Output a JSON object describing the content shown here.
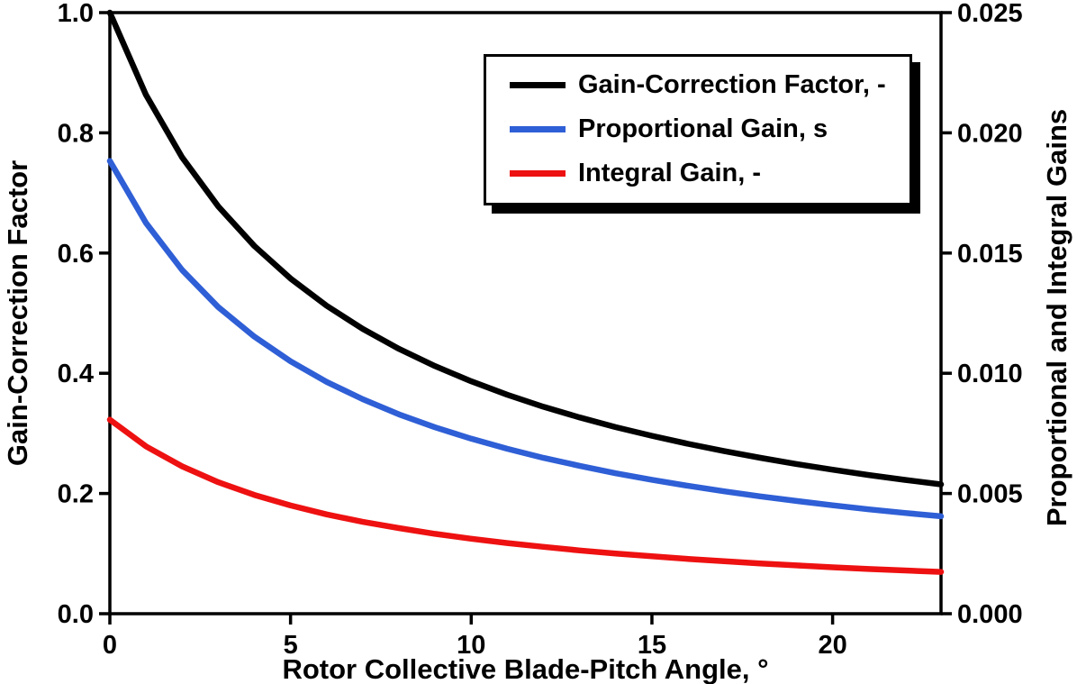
{
  "chart_data": {
    "type": "line",
    "title": "",
    "xlabel": "Rotor Collective Blade-Pitch Angle, °",
    "ylabel_left": "Gain-Correction Factor",
    "ylabel_right": "Proportional and Integral Gains",
    "xlim": [
      0,
      23
    ],
    "ylim_left": [
      0.0,
      1.0
    ],
    "ylim_right": [
      0.0,
      0.025
    ],
    "x_ticks": [
      0,
      5,
      10,
      15,
      20
    ],
    "y_ticks_left": [
      "0.0",
      "0.2",
      "0.4",
      "0.6",
      "0.8",
      "1.0"
    ],
    "y_ticks_right": [
      "0.000",
      "0.005",
      "0.010",
      "0.015",
      "0.020",
      "0.025"
    ],
    "grid": false,
    "legend_position": "inside-top-center",
    "frame_color": "#000000",
    "x": [
      0,
      1,
      2,
      3,
      4,
      5,
      6,
      7,
      8,
      9,
      10,
      11,
      12,
      13,
      14,
      15,
      16,
      17,
      18,
      19,
      20,
      21,
      22,
      23
    ],
    "series": [
      {
        "name": "Gain-Correction Factor, -",
        "axis": "left",
        "color": "#000000",
        "values": [
          1.0,
          0.8631,
          0.7591,
          0.6775,
          0.6117,
          0.5576,
          0.5123,
          0.4738,
          0.4406,
          0.4118,
          0.3866,
          0.3642,
          0.3443,
          0.3265,
          0.3104,
          0.2959,
          0.2826,
          0.2704,
          0.2593,
          0.2491,
          0.2396,
          0.2308,
          0.2227,
          0.2151
        ]
      },
      {
        "name": "Proportional Gain, s",
        "axis": "right",
        "color": "#2f5fd6",
        "values": [
          0.01883,
          0.01625,
          0.01429,
          0.01275,
          0.01152,
          0.0105,
          0.00964,
          0.00892,
          0.00829,
          0.00775,
          0.00728,
          0.00686,
          0.00648,
          0.00615,
          0.00584,
          0.00557,
          0.00532,
          0.00509,
          0.00488,
          0.00469,
          0.00451,
          0.00434,
          0.00419,
          0.00405
        ]
      },
      {
        "name": "Integral Gain, -",
        "axis": "right",
        "color": "#ee1111",
        "values": [
          0.00807,
          0.00696,
          0.00613,
          0.00547,
          0.00494,
          0.0045,
          0.00413,
          0.00382,
          0.00356,
          0.00332,
          0.00312,
          0.00294,
          0.00278,
          0.00263,
          0.0025,
          0.00239,
          0.00228,
          0.00218,
          0.00209,
          0.00201,
          0.00193,
          0.00186,
          0.0018,
          0.00174
        ]
      }
    ]
  }
}
